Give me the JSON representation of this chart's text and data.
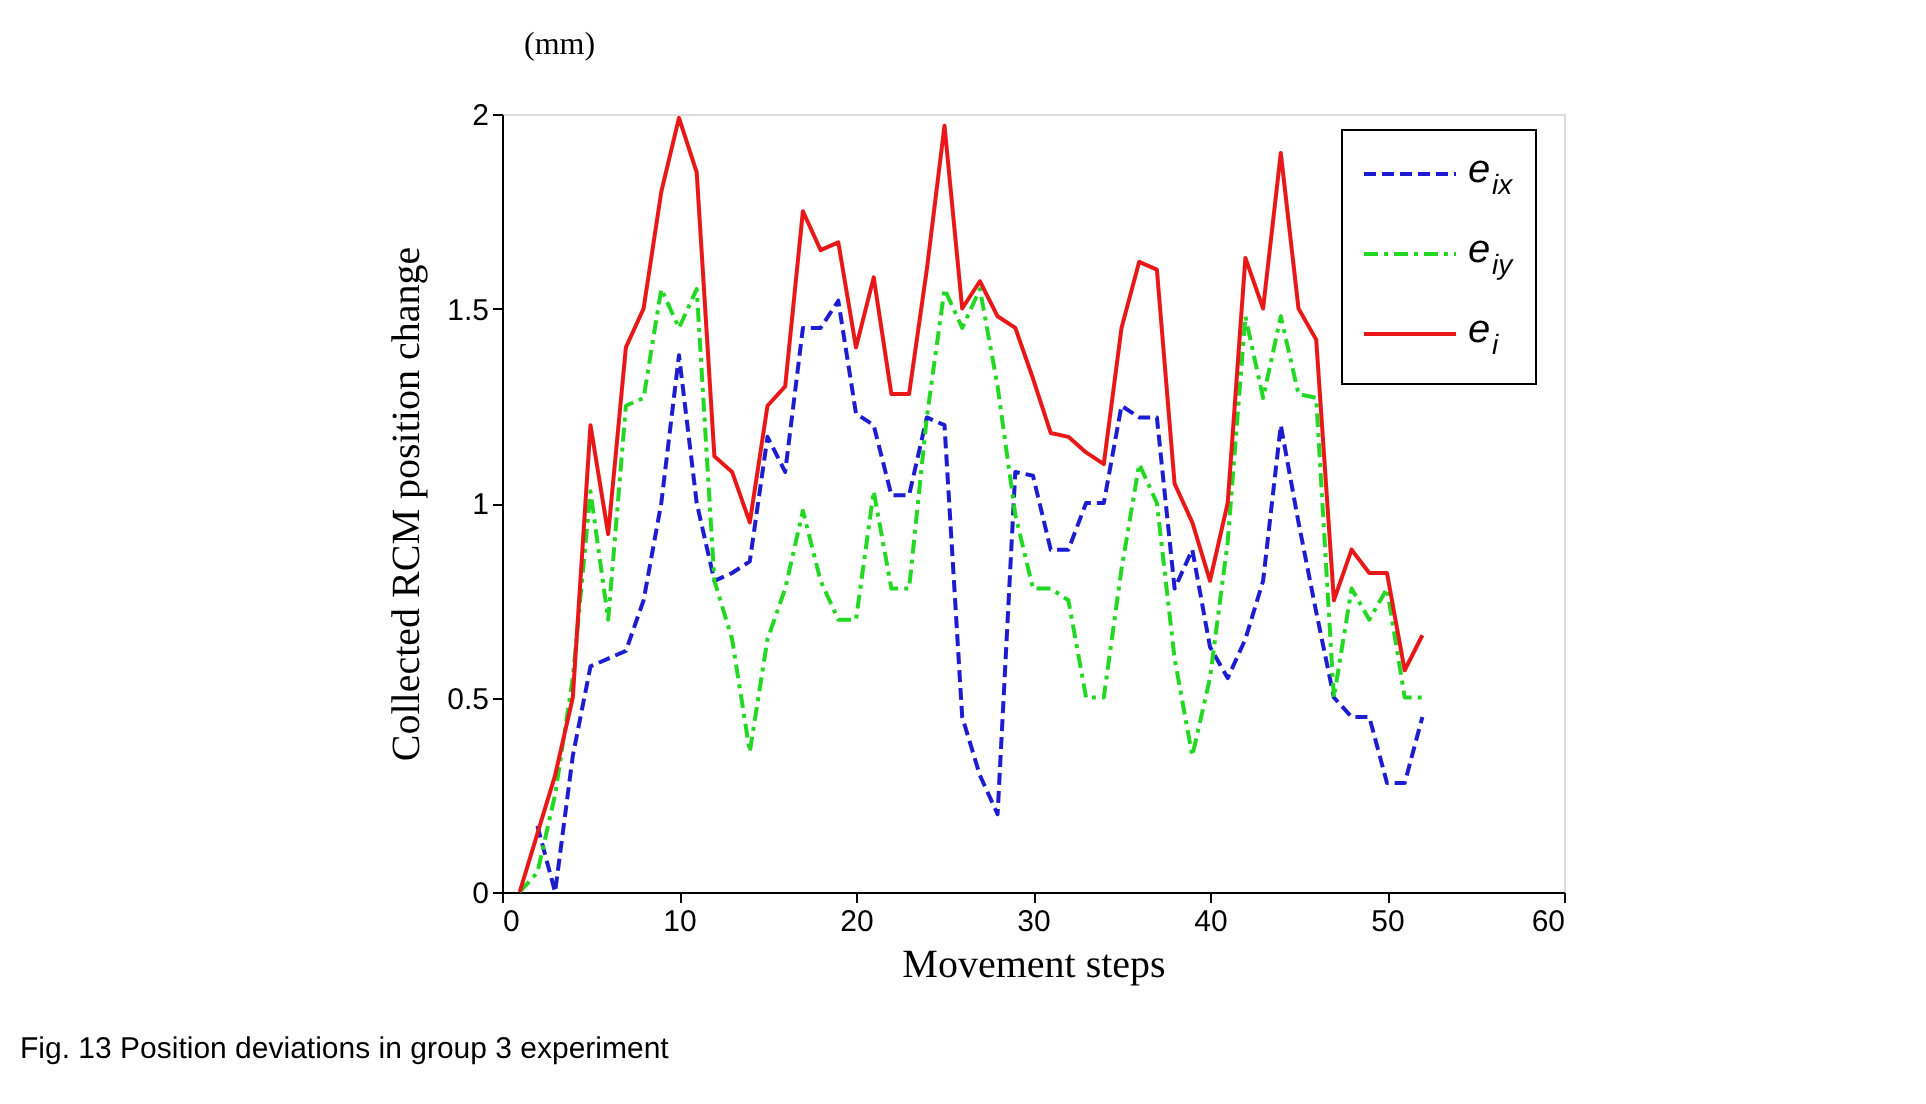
{
  "chart_data": {
    "type": "line",
    "xlabel": "Movement steps",
    "ylabel": "Collected RCM position change",
    "annotations": [
      "(mm)",
      "Fig. 13  Position deviations in group 3 experiment"
    ],
    "x": [
      1,
      2,
      3,
      4,
      5,
      6,
      7,
      8,
      9,
      10,
      11,
      12,
      13,
      14,
      15,
      16,
      17,
      18,
      19,
      20,
      21,
      22,
      23,
      24,
      25,
      26,
      27,
      28,
      29,
      30,
      31,
      32,
      33,
      34,
      35,
      36,
      37,
      38,
      39,
      40,
      41,
      42,
      43,
      44,
      45,
      46,
      47,
      48,
      49,
      50,
      51,
      52
    ],
    "series": [
      {
        "name": "e$_{ix}$",
        "color": "#1c1cd0",
        "line_style": "dashed",
        "values": [
          null,
          0.17,
          0,
          0.35,
          0.58,
          0.6,
          0.62,
          0.75,
          1.0,
          1.38,
          1.0,
          0.8,
          0.82,
          0.85,
          1.17,
          1.08,
          1.45,
          1.45,
          1.52,
          1.23,
          1.2,
          1.02,
          1.02,
          1.22,
          1.2,
          0.45,
          0.3,
          0.2,
          1.08,
          1.07,
          0.88,
          0.88,
          1.0,
          1.0,
          1.25,
          1.22,
          1.22,
          0.78,
          0.88,
          0.63,
          0.55,
          0.65,
          0.8,
          1.2,
          0.95,
          0.72,
          0.5,
          0.45,
          0.45,
          0.28,
          0.28,
          0.45
        ]
      },
      {
        "name": "e$_{iy}$",
        "color": "#22d822",
        "line_style": "dotted",
        "values": [
          0,
          0.05,
          0.25,
          0.55,
          1.03,
          0.7,
          1.25,
          1.27,
          1.55,
          1.45,
          1.55,
          0.8,
          0.65,
          0.36,
          0.65,
          0.78,
          0.98,
          0.8,
          0.7,
          0.7,
          1.03,
          0.78,
          0.78,
          1.22,
          1.55,
          1.45,
          1.55,
          1.3,
          0.97,
          0.78,
          0.78,
          0.75,
          0.5,
          0.5,
          0.83,
          1.1,
          1.0,
          0.6,
          0.35,
          0.55,
          0.9,
          1.48,
          1.27,
          1.48,
          1.28,
          1.27,
          0.5,
          0.78,
          0.7,
          0.78,
          0.5,
          0.5
        ]
      },
      {
        "name": "e$_{i}$",
        "color": "#e81818",
        "line_style": "solid",
        "values": [
          0,
          0.15,
          0.3,
          0.5,
          1.2,
          0.92,
          1.4,
          1.5,
          1.8,
          1.99,
          1.85,
          1.12,
          1.08,
          0.95,
          1.25,
          1.3,
          1.75,
          1.65,
          1.67,
          1.4,
          1.58,
          1.28,
          1.28,
          1.6,
          1.97,
          1.5,
          1.57,
          1.48,
          1.45,
          1.32,
          1.18,
          1.17,
          1.13,
          1.1,
          1.45,
          1.62,
          1.6,
          1.05,
          0.95,
          0.8,
          1.0,
          1.63,
          1.5,
          1.9,
          1.5,
          1.42,
          0.75,
          0.88,
          0.82,
          0.82,
          0.57,
          0.66
        ]
      }
    ],
    "xlim": [
      0,
      60
    ],
    "xticks": [
      0,
      10,
      20,
      30,
      40,
      50,
      60
    ],
    "ylim": [
      0,
      2
    ],
    "yticks": [
      0,
      0.5,
      1,
      1.5,
      2
    ],
    "grid": false,
    "legend": "top right",
    "marker": "none"
  }
}
